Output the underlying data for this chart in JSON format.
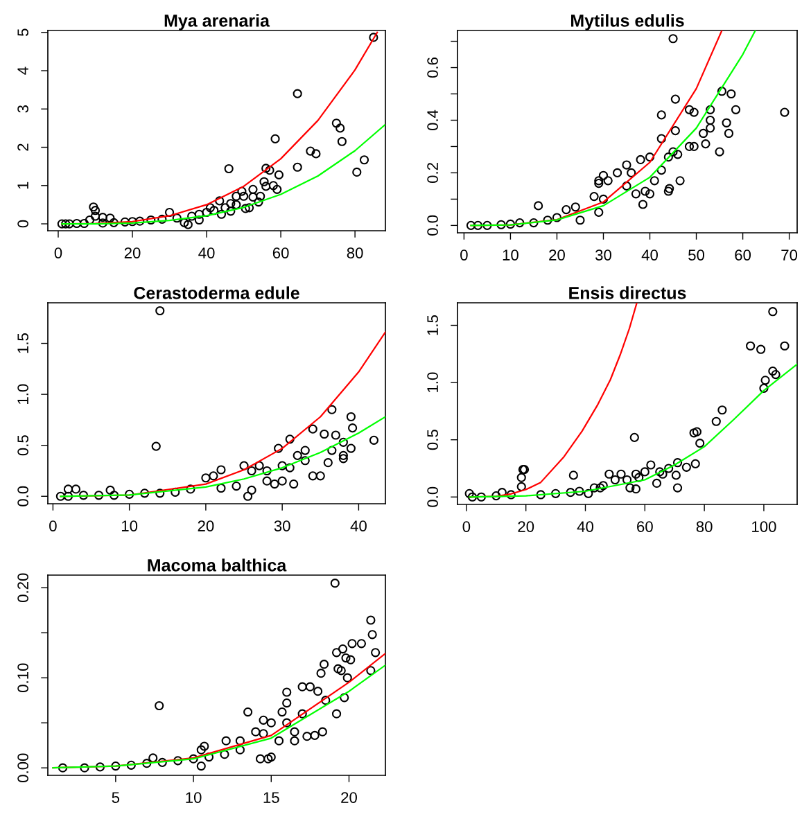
{
  "chart_data": [
    {
      "type": "scatter",
      "title": "Mya arenaria",
      "xlim": [
        -2.8,
        88.2
      ],
      "ylim": [
        -0.18,
        5.05
      ],
      "xticks": [
        0,
        20,
        40,
        60,
        80
      ],
      "yticks": [
        0,
        1,
        2,
        3,
        4,
        5
      ],
      "series": [
        {
          "type": "scatter",
          "marker": "circle",
          "color": "#000000",
          "x": [
            85,
            64.5,
            58.5,
            75,
            76,
            76.5,
            68,
            69.5,
            64.5,
            46,
            56,
            57,
            59.5,
            80.5,
            82.5,
            55.5,
            56,
            58,
            59,
            52.5,
            49.5,
            48,
            50,
            52.5,
            54.5,
            54,
            50.5,
            51.5,
            46.5,
            43.5,
            44,
            46.5,
            41,
            40,
            38,
            35,
            34,
            30,
            9.5,
            10,
            10,
            12,
            14,
            8.5,
            1,
            2,
            3,
            5,
            7,
            12,
            15,
            18,
            20,
            22,
            25,
            28,
            32,
            36,
            38,
            42,
            45,
            48
          ],
          "values": [
            4.87,
            3.4,
            2.22,
            2.63,
            2.5,
            2.15,
            1.9,
            1.83,
            1.48,
            1.44,
            1.45,
            1.4,
            1.28,
            1.35,
            1.67,
            1.1,
            0.98,
            1.0,
            0.9,
            0.9,
            0.85,
            0.72,
            0.72,
            0.7,
            0.72,
            0.57,
            0.4,
            0.42,
            0.53,
            0.6,
            0.25,
            0.33,
            0.42,
            0.3,
            0.1,
            -0.02,
            0.03,
            0.3,
            0.44,
            0.35,
            0.2,
            0.17,
            0.15,
            0.1,
            0.0,
            0.0,
            0.0,
            0.01,
            0.01,
            0.02,
            0.03,
            0.05,
            0.06,
            0.07,
            0.1,
            0.12,
            0.15,
            0.2,
            0.25,
            0.35,
            0.42,
            0.5
          ]
        },
        {
          "type": "line",
          "color": "#ff0000",
          "x": [
            1,
            10,
            20,
            30,
            40,
            50,
            60,
            70,
            80,
            86
          ],
          "values": [
            0.0,
            0.01,
            0.06,
            0.21,
            0.5,
            0.98,
            1.7,
            2.7,
            4.02,
            5.0
          ]
        },
        {
          "type": "line",
          "color": "#00ff00",
          "x": [
            1,
            10,
            20,
            30,
            40,
            50,
            60,
            70,
            80,
            88
          ],
          "values": [
            0.0,
            0.0,
            0.02,
            0.09,
            0.21,
            0.43,
            0.77,
            1.25,
            1.91,
            2.58
          ]
        }
      ]
    },
    {
      "type": "scatter",
      "title": "Mytilus edulis",
      "xlim": [
        -1.4,
        71.7
      ],
      "ylim": [
        -0.028,
        0.741
      ],
      "xticks": [
        0,
        10,
        20,
        30,
        40,
        50,
        60,
        70
      ],
      "yticks": [
        {
          "value": 0.0,
          "label": "0.0"
        },
        {
          "value": 0.1,
          "label": null
        },
        {
          "value": 0.2,
          "label": "0.2"
        },
        {
          "value": 0.3,
          "label": null
        },
        {
          "value": 0.4,
          "label": "0.4"
        },
        {
          "value": 0.5,
          "label": null
        },
        {
          "value": 0.6,
          "label": "0.6"
        },
        {
          "value": 0.7,
          "label": null
        }
      ],
      "series": [
        {
          "type": "scatter",
          "marker": "circle",
          "color": "#000000",
          "x": [
            45,
            69,
            55.5,
            57.5,
            58.5,
            45.5,
            48.5,
            49.5,
            53,
            53,
            53,
            51.5,
            56.5,
            57,
            52,
            48.5,
            49.5,
            55,
            42.5,
            42.5,
            45.5,
            46,
            45,
            44,
            46.5,
            44,
            44.2,
            38.5,
            39,
            37,
            40,
            38,
            40,
            35,
            33,
            35,
            36,
            41,
            42.5,
            30,
            29,
            31,
            29,
            28,
            29,
            30,
            16,
            25,
            24,
            22,
            20,
            18,
            15,
            12,
            10,
            8,
            5,
            3,
            1.5
          ],
          "values": [
            0.71,
            0.43,
            0.51,
            0.5,
            0.44,
            0.48,
            0.44,
            0.43,
            0.44,
            0.4,
            0.37,
            0.35,
            0.39,
            0.35,
            0.31,
            0.3,
            0.3,
            0.28,
            0.42,
            0.33,
            0.36,
            0.27,
            0.28,
            0.26,
            0.17,
            0.13,
            0.14,
            0.08,
            0.13,
            0.12,
            0.12,
            0.25,
            0.26,
            0.23,
            0.2,
            0.15,
            0.2,
            0.17,
            0.21,
            0.19,
            0.17,
            0.17,
            0.16,
            0.11,
            0.05,
            0.1,
            0.075,
            0.02,
            0.07,
            0.06,
            0.03,
            0.02,
            0.01,
            0.01,
            0.005,
            0.003,
            0.0,
            0.0,
            0.0
          ]
        },
        {
          "type": "line",
          "color": "#ff0000",
          "x": [
            1.5,
            10,
            20,
            30,
            40,
            50,
            55.5
          ],
          "values": [
            0.0,
            0.002,
            0.022,
            0.089,
            0.24,
            0.52,
            0.741
          ]
        },
        {
          "type": "line",
          "color": "#00ff00",
          "x": [
            1.5,
            10,
            20,
            30,
            40,
            50,
            60,
            62.7
          ],
          "values": [
            0.0,
            0.002,
            0.021,
            0.075,
            0.183,
            0.37,
            0.65,
            0.741
          ]
        }
      ]
    },
    {
      "type": "scatter",
      "title": "Cerastoderma edule",
      "xlim": [
        -0.67,
        43.5
      ],
      "ylim": [
        -0.073,
        1.898
      ],
      "xticks": [
        0,
        10,
        20,
        30,
        40
      ],
      "yticks": [
        {
          "value": 0.0,
          "label": "0.0"
        },
        {
          "value": 0.5,
          "label": "0.5"
        },
        {
          "value": 1.0,
          "label": "1.0"
        },
        {
          "value": 1.5,
          "label": "1.5"
        }
      ],
      "series": [
        {
          "type": "scatter",
          "marker": "circle",
          "color": "#000000",
          "x": [
            14,
            13.5,
            36.5,
            39,
            39.2,
            34,
            42,
            31,
            29.5,
            35.5,
            37,
            38,
            39,
            38,
            38,
            36,
            35,
            34,
            36.5,
            33,
            32,
            31,
            30,
            29,
            31.5,
            28,
            27,
            25,
            26,
            22,
            21,
            20,
            25.5,
            26,
            24,
            22,
            18,
            16,
            14,
            12,
            10,
            7.5,
            2,
            3,
            1,
            2,
            4,
            6,
            8,
            28,
            30,
            33
          ],
          "values": [
            1.82,
            0.49,
            0.85,
            0.78,
            0.67,
            0.66,
            0.55,
            0.56,
            0.47,
            0.61,
            0.6,
            0.53,
            0.47,
            0.4,
            0.37,
            0.33,
            0.2,
            0.2,
            0.45,
            0.45,
            0.4,
            0.28,
            0.15,
            0.12,
            0.12,
            0.15,
            0.3,
            0.3,
            0.25,
            0.26,
            0.2,
            0.18,
            0.0,
            0.06,
            0.1,
            0.08,
            0.07,
            0.04,
            0.03,
            0.03,
            0.02,
            0.06,
            0.07,
            0.07,
            0.0,
            0.0,
            0.01,
            0.01,
            0.01,
            0.25,
            0.3,
            0.35
          ]
        },
        {
          "type": "line",
          "color": "#ff0000",
          "x": [
            1,
            10,
            20,
            25,
            30,
            35,
            40,
            43.5
          ],
          "values": [
            0.0,
            0.012,
            0.12,
            0.26,
            0.47,
            0.78,
            1.22,
            1.61
          ]
        },
        {
          "type": "line",
          "color": "#00ff00",
          "x": [
            1,
            10,
            20,
            25,
            30,
            35,
            40,
            43.5
          ],
          "values": [
            0.0,
            0.013,
            0.091,
            0.17,
            0.28,
            0.43,
            0.62,
            0.78
          ]
        }
      ]
    },
    {
      "type": "scatter",
      "title": "Ensis directus",
      "xlim": [
        -3.0,
        111.2
      ],
      "ylim": [
        -0.065,
        1.697
      ],
      "xticks": [
        0,
        20,
        40,
        60,
        80,
        100
      ],
      "yticks": [
        {
          "value": 0.0,
          "label": "0.0"
        },
        {
          "value": 0.5,
          "label": "0.5"
        },
        {
          "value": 1.0,
          "label": "1.0"
        },
        {
          "value": 1.5,
          "label": "1.5"
        }
      ],
      "series": [
        {
          "type": "scatter",
          "marker": "circle",
          "color": "#000000",
          "x": [
            103,
            95.5,
            99,
            107,
            103,
            104,
            100.5,
            100,
            86,
            84,
            76.5,
            77.5,
            78.5,
            77,
            74,
            71,
            70.5,
            71,
            64,
            62,
            56.5,
            60,
            57,
            55,
            57,
            52,
            48,
            50,
            46,
            43,
            41,
            36,
            19,
            19.5,
            18.5,
            18.5,
            12,
            1,
            2,
            5,
            10,
            15,
            25,
            30,
            35,
            38,
            45,
            54,
            58,
            65,
            68,
            66
          ],
          "values": [
            1.62,
            1.32,
            1.29,
            1.32,
            1.1,
            1.07,
            1.02,
            0.95,
            0.76,
            0.66,
            0.56,
            0.57,
            0.47,
            0.29,
            0.26,
            0.3,
            0.19,
            0.08,
            0.12,
            0.28,
            0.52,
            0.22,
            0.2,
            0.08,
            0.07,
            0.2,
            0.2,
            0.15,
            0.1,
            0.08,
            0.03,
            0.19,
            0.24,
            0.24,
            0.17,
            0.09,
            0.04,
            0.03,
            0.0,
            0.0,
            0.01,
            0.02,
            0.02,
            0.03,
            0.04,
            0.05,
            0.08,
            0.15,
            0.17,
            0.22,
            0.25,
            0.2
          ]
        },
        {
          "type": "line",
          "color": "#ff0000",
          "x": [
            1,
            10,
            15,
            20,
            25,
            32.8,
            38.9,
            44,
            48.4,
            51.8,
            54.8,
            57.3
          ],
          "values": [
            0.0,
            0.005,
            0.027,
            0.065,
            0.128,
            0.352,
            0.576,
            0.8,
            1.025,
            1.249,
            1.473,
            1.697
          ]
        },
        {
          "type": "line",
          "color": "#00ff00",
          "x": [
            1,
            20,
            40,
            60,
            70,
            80,
            90,
            100,
            111.2
          ],
          "values": [
            0.0,
            0.01,
            0.05,
            0.15,
            0.28,
            0.44,
            0.68,
            0.93,
            1.16
          ]
        }
      ]
    },
    {
      "type": "scatter",
      "title": "Macoma balthica",
      "xlim": [
        0.64,
        22.34
      ],
      "ylim": [
        -0.0083,
        0.214
      ],
      "xticks": [
        5,
        10,
        15,
        20
      ],
      "yticks": [
        {
          "value": 0.0,
          "label": "0.00"
        },
        {
          "value": 0.05,
          "label": null
        },
        {
          "value": 0.1,
          "label": "0.10"
        },
        {
          "value": 0.15,
          "label": null
        },
        {
          "value": 0.2,
          "label": "0.20"
        }
      ],
      "series": [
        {
          "type": "scatter",
          "marker": "circle",
          "color": "#000000",
          "x": [
            19.1,
            21.4,
            21.5,
            21.7,
            20.2,
            20.8,
            19.6,
            19.2,
            19.8,
            20.1,
            19.3,
            19.5,
            19.9,
            21.4,
            18.4,
            18.2,
            19.7,
            19.2,
            7.8,
            13.5,
            16,
            16,
            17,
            17.5,
            18,
            18.5,
            17,
            15.7,
            14.5,
            15,
            16,
            16.5,
            17.3,
            18.3,
            17.8,
            12.1,
            13,
            14,
            14.5,
            10.7,
            10.5,
            14.8,
            15.0,
            14.3,
            13,
            12,
            11,
            10,
            9,
            8,
            7.4,
            7,
            6,
            5,
            4,
            3,
            1.6,
            10.5,
            16.5,
            15.5
          ],
          "values": [
            0.205,
            0.164,
            0.148,
            0.128,
            0.138,
            0.138,
            0.132,
            0.128,
            0.122,
            0.12,
            0.11,
            0.108,
            0.1,
            0.108,
            0.115,
            0.105,
            0.078,
            0.06,
            0.069,
            0.062,
            0.084,
            0.072,
            0.09,
            0.09,
            0.085,
            0.075,
            0.06,
            0.062,
            0.053,
            0.05,
            0.05,
            0.04,
            0.035,
            0.04,
            0.036,
            0.03,
            0.03,
            0.04,
            0.038,
            0.024,
            0.02,
            0.01,
            0.012,
            0.01,
            0.02,
            0.015,
            0.012,
            0.01,
            0.008,
            0.006,
            0.011,
            0.005,
            0.003,
            0.002,
            0.001,
            0.0,
            0.0,
            0.002,
            0.03,
            0.03
          ]
        },
        {
          "type": "line",
          "color": "#ff0000",
          "x": [
            0.97,
            5,
            10,
            15,
            20,
            22.34
          ],
          "values": [
            0.0,
            0.002,
            0.011,
            0.036,
            0.095,
            0.127
          ]
        },
        {
          "type": "line",
          "color": "#00ff00",
          "x": [
            0.97,
            5,
            10,
            15,
            20,
            22.34
          ],
          "values": [
            0.0,
            0.002,
            0.01,
            0.033,
            0.085,
            0.114
          ]
        }
      ]
    }
  ]
}
